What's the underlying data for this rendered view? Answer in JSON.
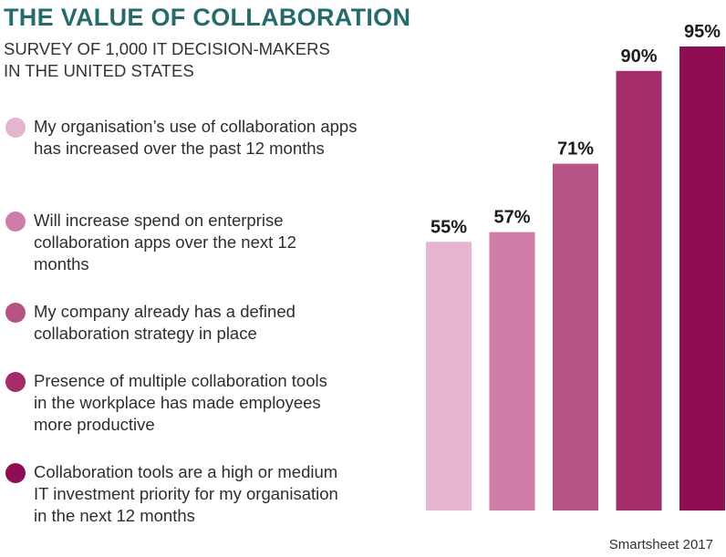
{
  "title": "THE VALUE OF COLLABORATION",
  "subtitle": {
    "line1": "SURVEY OF 1,000 IT DECISION-MAKERS",
    "line2": "IN THE UNITED STATES"
  },
  "source": "Smartsheet 2017",
  "legend": [
    {
      "color": "#e5b4cf",
      "lines": [
        "My organisation’s use of collaboration apps",
        "has increased over the past 12 months"
      ]
    },
    {
      "color": "#cd7da6",
      "lines": [
        "Will increase spend on enterprise",
        "collaboration apps over the next 12",
        "months"
      ]
    },
    {
      "color": "#b75285",
      "lines": [
        "My company already has a defined",
        "collaboration strategy in place"
      ]
    },
    {
      "color": "#a32c6b",
      "lines": [
        "Presence of multiple collaboration tools",
        "in the workplace has made employees",
        "more productive"
      ]
    },
    {
      "color": "#8f0e53",
      "lines": [
        "Collaboration tools are a high or medium",
        "IT investment priority for my organisation",
        "in the next 12 months"
      ]
    }
  ],
  "chart_data": {
    "type": "bar",
    "title": "THE VALUE OF COLLABORATION",
    "categories": [
      "My organisation’s use of collaboration apps has increased over the past 12 months",
      "Will increase spend on enterprise collaboration apps over the next 12 months",
      "My company already has a defined collaboration strategy in place",
      "Presence of multiple collaboration tools in the workplace has made employees more productive",
      "Collaboration tools are a high or medium IT investment priority for my organisation in the next 12 months"
    ],
    "values": [
      55,
      57,
      71,
      90,
      95
    ],
    "value_labels": [
      "55%",
      "57%",
      "71%",
      "90%",
      "95%"
    ],
    "colors": [
      "#e5b4cf",
      "#cd7da6",
      "#b75285",
      "#a32c6b",
      "#8f0e53"
    ],
    "xlabel": "",
    "ylabel": "",
    "ylim": [
      0,
      100
    ],
    "grid": false,
    "legend": "left"
  }
}
